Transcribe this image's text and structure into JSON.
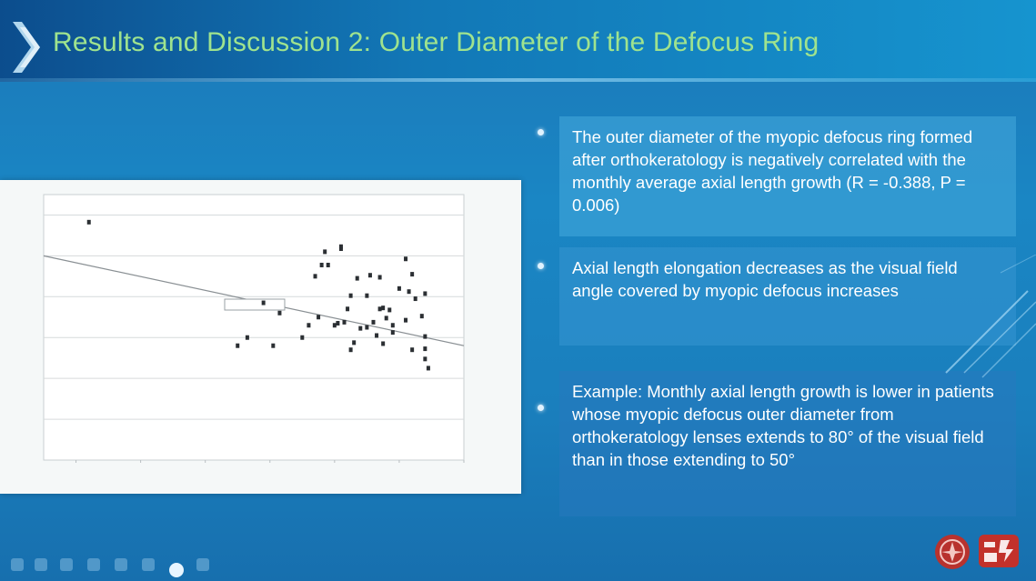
{
  "slide": {
    "title": "Results and Discussion 2: Outer Diameter of the Defocus Ring",
    "bullets": [
      "The outer diameter of the myopic defocus ring formed after orthokeratology is negatively correlated with the monthly average axial length growth (R = -0.388, P = 0.006)",
      "Axial length elongation decreases as the visual field angle covered by myopic defocus increases",
      "Example: Monthly axial length growth is lower in patients whose myopic defocus outer diameter from orthokeratology lenses extends to 80° of the visual field than in those extending to 50°"
    ]
  },
  "colors": {
    "title": "#9fe38e",
    "background": "#1a86c4",
    "chart_points": "#2b2f33"
  },
  "chart_data": {
    "type": "scatter",
    "x": [
      14,
      60,
      63,
      68,
      71,
      73,
      80,
      82,
      84,
      85,
      86,
      87,
      88,
      90,
      91,
      92,
      92,
      93,
      94,
      95,
      95,
      96,
      97,
      98,
      100,
      100,
      101,
      102,
      103,
      104,
      104,
      105,
      105,
      106,
      107,
      108,
      108,
      110,
      112,
      112,
      113,
      114,
      114,
      115,
      117,
      118,
      118,
      118,
      118,
      119
    ],
    "y": [
      0.173,
      0.052,
      0.06,
      0.094,
      0.052,
      0.084,
      0.06,
      0.072,
      0.12,
      0.08,
      0.131,
      0.144,
      0.131,
      0.072,
      0.074,
      0.147,
      0.149,
      0.075,
      0.088,
      0.101,
      0.048,
      0.055,
      0.118,
      0.069,
      0.101,
      0.07,
      0.121,
      0.075,
      0.062,
      0.088,
      0.119,
      0.089,
      0.054,
      0.079,
      0.087,
      0.072,
      0.065,
      0.108,
      0.077,
      0.137,
      0.105,
      0.048,
      0.122,
      0.098,
      0.081,
      0.103,
      0.061,
      0.049,
      0.039,
      0.03
    ],
    "trendline": {
      "x": [
        0,
        130
      ],
      "y": [
        0.14,
        0.052
      ]
    },
    "xlim": [
      0,
      130
    ],
    "ylim": [
      -0.06,
      0.2
    ]
  }
}
